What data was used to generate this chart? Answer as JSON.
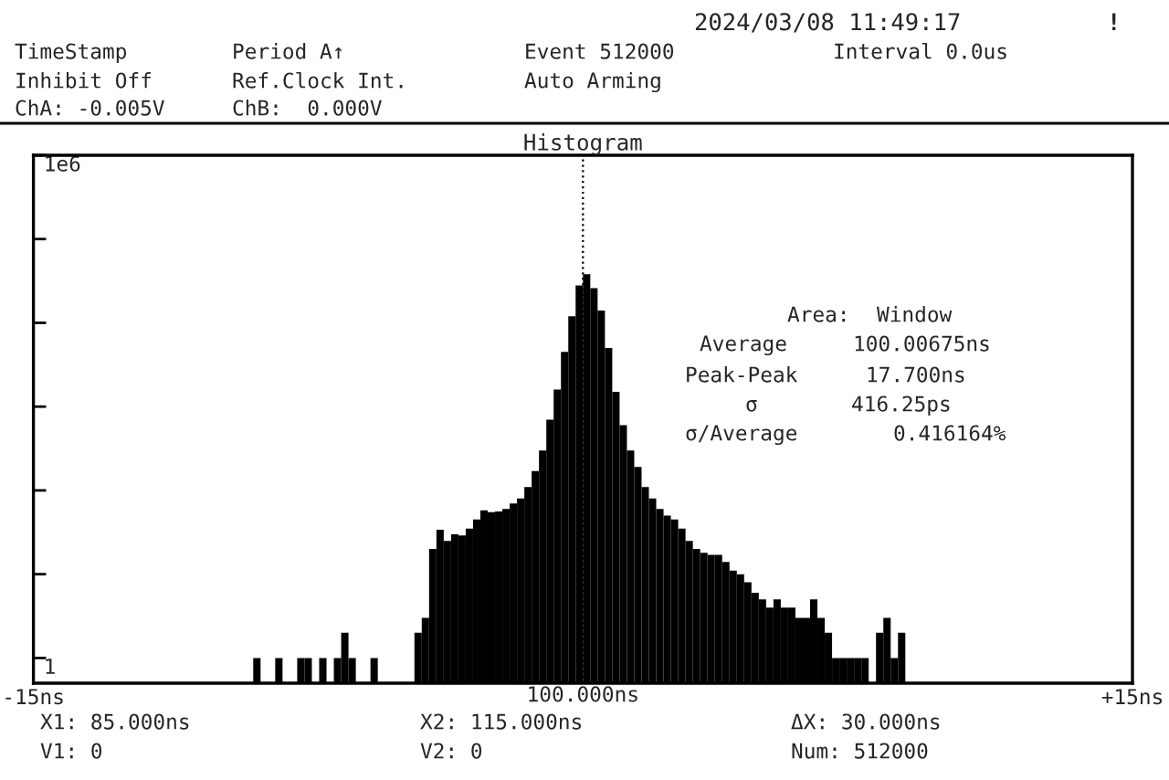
{
  "chart_data": {
    "type": "histogram",
    "title": "Histogram",
    "xlabel": "100.000ns",
    "bins": [
      -9.0,
      -8.8,
      -8.6,
      -8.4,
      -8.2,
      -8.0,
      -7.8,
      -7.6,
      -7.4,
      -7.2,
      -7.0,
      -6.8,
      -6.6,
      -6.4,
      -6.2,
      -6.0,
      -5.8,
      -5.6,
      -5.4,
      -5.2,
      -5.0,
      -4.8,
      -4.6,
      -4.4,
      -4.2,
      -4.0,
      -3.8,
      -3.6,
      -3.4,
      -3.2,
      -3.0,
      -2.8,
      -2.6,
      -2.4,
      -2.2,
      -2.0,
      -1.8,
      -1.6,
      -1.4,
      -1.2,
      -1.0,
      -0.8,
      -0.6,
      -0.4,
      -0.2,
      0.0,
      0.2,
      0.4,
      0.6,
      0.8,
      1.0,
      1.2,
      1.4,
      1.6,
      1.8,
      2.0,
      2.2,
      2.4,
      2.6,
      2.8,
      3.0,
      3.2,
      3.4,
      3.6,
      3.8,
      4.0,
      4.2,
      4.4,
      4.6,
      4.8,
      5.0,
      5.2,
      5.4,
      5.6,
      5.8,
      6.0,
      6.2,
      6.4,
      6.6,
      6.8,
      7.0,
      7.2,
      7.4,
      7.6,
      7.8,
      8.0,
      8.2,
      8.4,
      8.6,
      8.8,
      9.0
    ],
    "values": [
      1,
      null,
      null,
      1,
      null,
      null,
      1,
      1,
      null,
      1,
      null,
      1,
      2,
      1,
      null,
      null,
      1,
      null,
      null,
      null,
      null,
      null,
      2,
      3,
      20,
      34,
      25,
      30,
      29,
      35,
      45,
      58,
      55,
      56,
      60,
      70,
      80,
      110,
      170,
      300,
      700,
      1600,
      4500,
      12000,
      28000,
      38000,
      26000,
      14000,
      5000,
      1500,
      600,
      300,
      190,
      110,
      80,
      60,
      50,
      45,
      35,
      25,
      20,
      18,
      17,
      17,
      14,
      11,
      10,
      8,
      6,
      5,
      4,
      5,
      4,
      4,
      3,
      3,
      5,
      3,
      2,
      1,
      1,
      1,
      1,
      1,
      null,
      2,
      3,
      1,
      2,
      null
    ],
    "color": "#000000",
    "log": true,
    "xlim": [
      -15,
      15
    ],
    "xticks": [
      {
        "value": -15,
        "label": "-15ns"
      },
      {
        "value": 15,
        "label": "+15ns"
      }
    ],
    "ylim": [
      0.5,
      1000000
    ],
    "yticks": [
      1,
      {
        "value": 10,
        "label": null
      },
      {
        "value": 100,
        "label": null
      },
      {
        "value": 1000,
        "label": null
      },
      {
        "value": 10000,
        "label": null
      },
      {
        "value": 100000,
        "label": null
      },
      {
        "value": 1000000,
        "label": "1e6"
      }
    ],
    "ref_lines": [
      {
        "axis": "x",
        "value": 0,
        "line_style": "dotted",
        "color": "#000000"
      }
    ],
    "annotations": [
      "2024/03/08 11:49:17",
      "!",
      "TimeStamp",
      "Period A↑",
      "Event 512000",
      "Interval 0.0us",
      "Inhibit Off",
      "Ref.Clock Int.",
      "Auto Arming",
      "ChA: -0.005V",
      "ChB:  0.000V",
      "Area:",
      "Window",
      "Average",
      "100.00675ns",
      "Peak-Peak",
      "17.700ns",
      "σ",
      "416.25ps",
      "σ/Average",
      "0.416164%",
      "X1: 85.000ns",
      "X2: 115.000ns",
      "ΔX: 30.000ns",
      "V1: 0",
      "V2: 0",
      "Num: 512000"
    ]
  }
}
